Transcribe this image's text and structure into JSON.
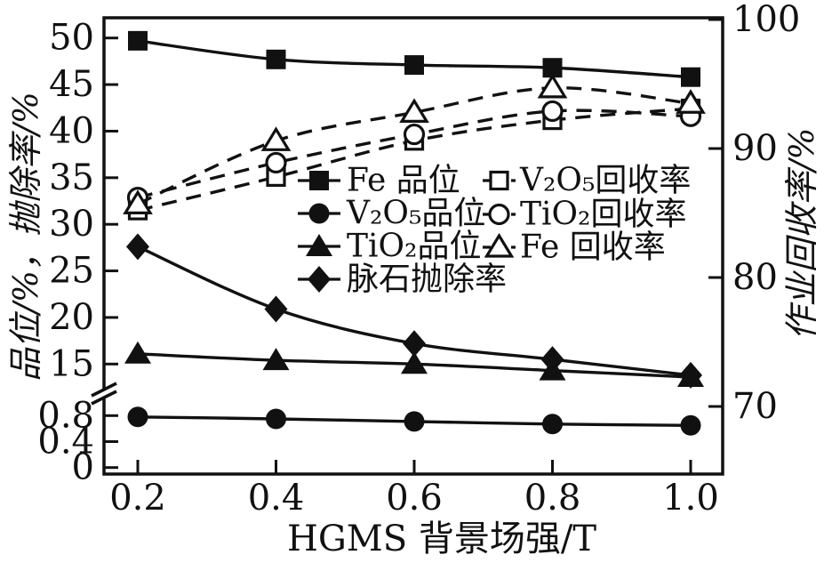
{
  "chart_data": {
    "type": "line",
    "xlabel": "HGMS 背景场强/T",
    "ylabel_left": "品位/%，抛除率/%",
    "ylabel_right": "作业回收率/%",
    "x": [
      0.2,
      0.4,
      0.6,
      0.8,
      1.0
    ],
    "x_axis": {
      "ticks": [
        0.2,
        0.4,
        0.6,
        0.8,
        1.0
      ]
    },
    "left_axis": {
      "upper_ticks": [
        50,
        45,
        40,
        35,
        30,
        25,
        20,
        15
      ],
      "lower_ticks": [
        0.8,
        0.4,
        0
      ],
      "has_break": true,
      "upper_range": [
        15,
        50
      ],
      "lower_range": [
        0,
        0.9
      ]
    },
    "right_axis": {
      "ticks": [
        100,
        90,
        80,
        70
      ],
      "range": [
        65,
        100
      ]
    },
    "grid": "off",
    "series": [
      {
        "id": "fe-grade",
        "name": "Fe 品位",
        "axis": "left",
        "line": "solid",
        "marker": "filled-square",
        "values": [
          49.7,
          47.7,
          47.1,
          46.8,
          45.8
        ]
      },
      {
        "id": "v2o5-grade",
        "name": "V₂O₅品位",
        "axis": "left-lower",
        "line": "solid",
        "marker": "filled-circle",
        "values": [
          0.78,
          0.75,
          0.71,
          0.67,
          0.65
        ]
      },
      {
        "id": "tio2-grade",
        "name": "TiO₂品位",
        "axis": "left",
        "line": "solid",
        "marker": "filled-triangle",
        "values": [
          16.1,
          15.4,
          15.0,
          14.3,
          13.6
        ]
      },
      {
        "id": "gangue-rejection",
        "name": "脉石抛除率",
        "axis": "left",
        "line": "solid",
        "marker": "filled-diamond",
        "values": [
          27.6,
          20.9,
          17.2,
          15.5,
          13.8
        ]
      },
      {
        "id": "v2o5-recovery",
        "name": "V₂O₅回收率",
        "axis": "right",
        "line": "dashed",
        "marker": "open-square",
        "values": [
          85.2,
          87.8,
          90.6,
          92.2,
          93.1
        ]
      },
      {
        "id": "tio2-recovery",
        "name": "TiO₂回收率",
        "axis": "right",
        "line": "dashed",
        "marker": "open-circle",
        "values": [
          86.2,
          88.9,
          91.1,
          92.9,
          92.5
        ]
      },
      {
        "id": "fe-recovery",
        "name": "Fe 回收率",
        "axis": "right",
        "line": "dashed",
        "marker": "open-triangle",
        "values": [
          85.7,
          90.6,
          92.8,
          94.7,
          93.5
        ]
      }
    ],
    "legend": {
      "position": "inside-center",
      "columns": [
        [
          "Fe 品位",
          "V₂O₅品位",
          "TiO₂品位",
          "脉石抛除率"
        ],
        [
          "V₂O₅回收率",
          "TiO₂回收率",
          "Fe 回收率"
        ]
      ]
    },
    "colors": {
      "ink": "#111111",
      "background": "#ffffff"
    }
  }
}
